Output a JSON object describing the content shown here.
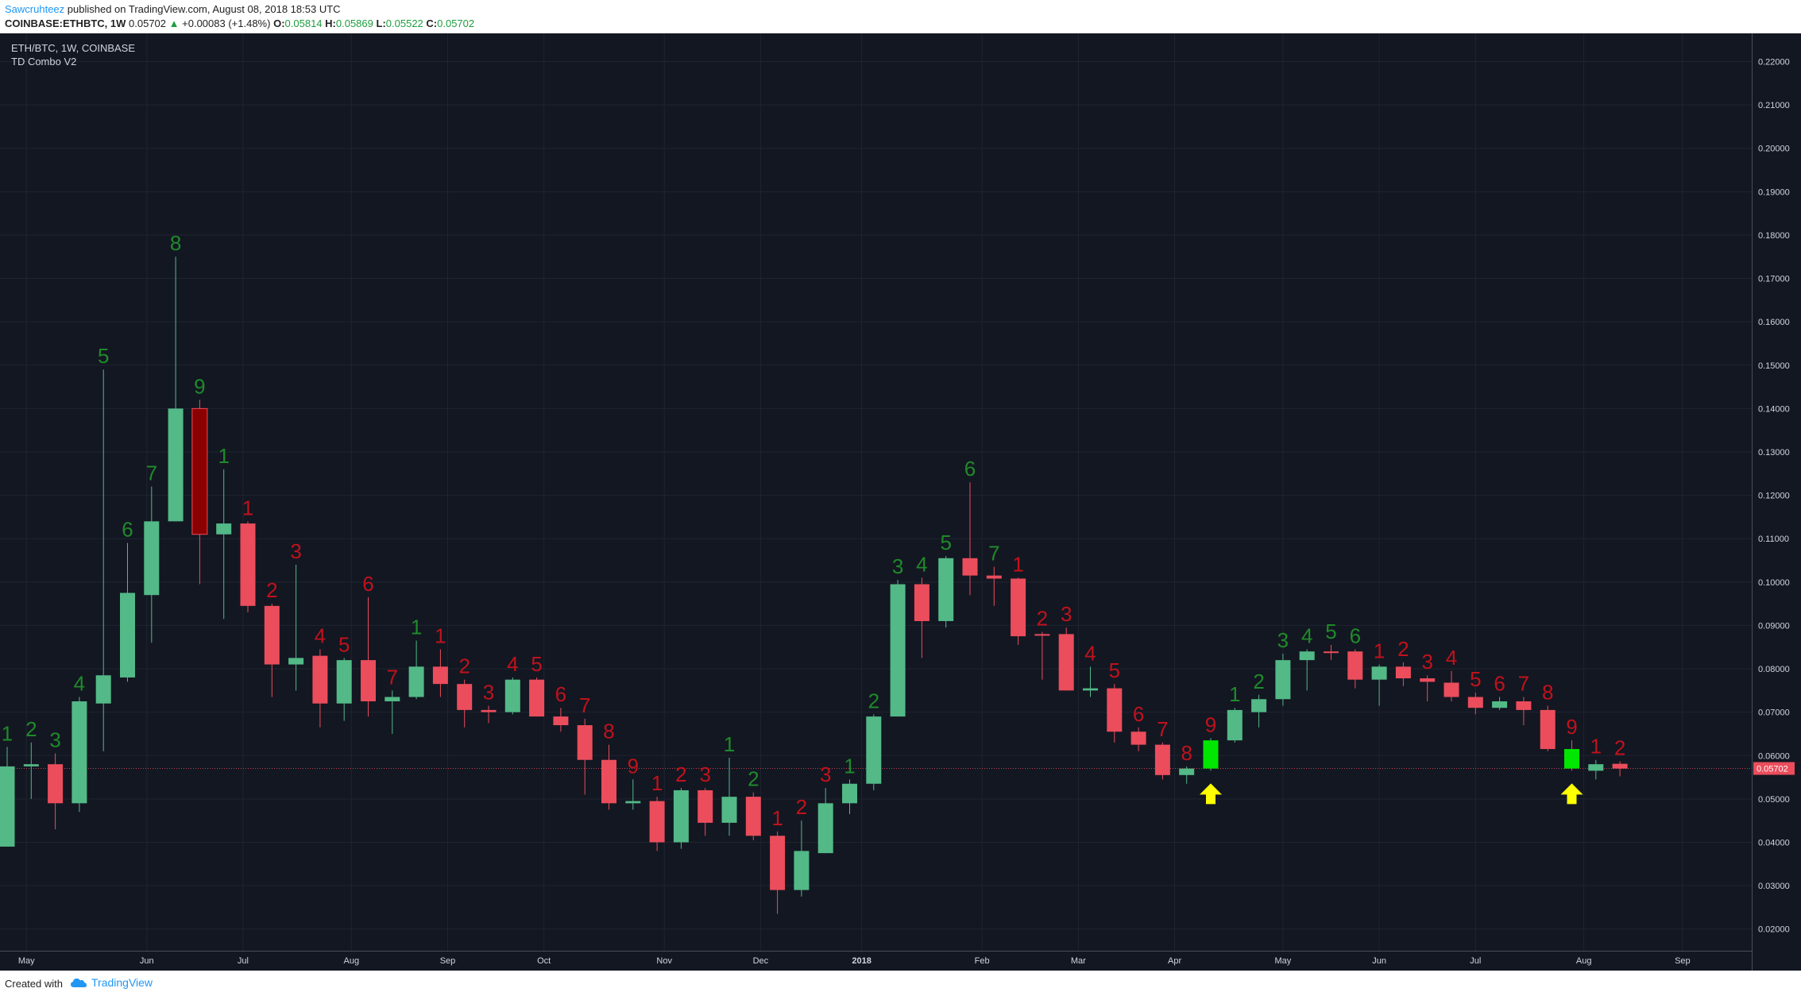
{
  "header": {
    "author": "Sawcruhteez",
    "published_text": "published on TradingView.com, August 08, 2018 18:53 UTC",
    "symbol": "COINBASE:ETHBTC, 1W",
    "last": "0.05702",
    "change": "+0.00083 (+1.48%)",
    "o_label": "O:",
    "o_val": "0.05814",
    "h_label": "H:",
    "h_val": "0.05869",
    "l_label": "L:",
    "l_val": "0.05522",
    "c_label": "C:",
    "c_val": "0.05702"
  },
  "legend": {
    "pair": "ETH/BTC, 1W, COINBASE",
    "indicator": "TD Combo V2"
  },
  "footer": {
    "created_with": "Created with",
    "brand": "TradingView"
  },
  "colors": {
    "background": "#131722",
    "up": "#53b987",
    "down": "#eb4d5c",
    "setup_up": "#1f8a2a",
    "setup_down": "#c0121c",
    "highlight_green": "#00e600",
    "highlight_red": "#8b0000",
    "arrow": "#ffff00",
    "price_tag": "#eb4d5c"
  },
  "chart_data": {
    "type": "candlestick",
    "symbol": "COINBASE:ETHBTC",
    "interval": "1W",
    "ylim": [
      0.015,
      0.2265
    ],
    "y_ticks": [
      "0.02000",
      "0.03000",
      "0.04000",
      "0.05000",
      "0.06000",
      "0.07000",
      "0.08000",
      "0.09000",
      "0.10000",
      "0.11000",
      "0.12000",
      "0.13000",
      "0.14000",
      "0.15000",
      "0.16000",
      "0.17000",
      "0.18000",
      "0.19000",
      "0.20000",
      "0.21000",
      "0.22000"
    ],
    "last_price": "0.05702",
    "x_labels": [
      {
        "label": "May",
        "at": 0.8
      },
      {
        "label": "Jun",
        "at": 5.8
      },
      {
        "label": "Jul",
        "at": 9.8
      },
      {
        "label": "Aug",
        "at": 14.3
      },
      {
        "label": "Sep",
        "at": 18.3
      },
      {
        "label": "Oct",
        "at": 22.3
      },
      {
        "label": "Nov",
        "at": 27.3
      },
      {
        "label": "Dec",
        "at": 31.3
      },
      {
        "label": "2018",
        "at": 35.5
      },
      {
        "label": "Feb",
        "at": 40.5
      },
      {
        "label": "Mar",
        "at": 44.5
      },
      {
        "label": "Apr",
        "at": 48.5
      },
      {
        "label": "May",
        "at": 53
      },
      {
        "label": "Jun",
        "at": 57
      },
      {
        "label": "Jul",
        "at": 61
      },
      {
        "label": "Aug",
        "at": 65.5
      },
      {
        "label": "Sep",
        "at": 69.6
      }
    ],
    "candles": [
      {
        "o": 0.039,
        "h": 0.062,
        "l": 0.039,
        "c": 0.0575,
        "td": "1",
        "tdc": "up"
      },
      {
        "o": 0.0575,
        "h": 0.063,
        "l": 0.05,
        "c": 0.058,
        "td": "2",
        "tdc": "up"
      },
      {
        "o": 0.058,
        "h": 0.0605,
        "l": 0.043,
        "c": 0.049,
        "td": "3",
        "tdc": "up"
      },
      {
        "o": 0.049,
        "h": 0.0735,
        "l": 0.047,
        "c": 0.0725,
        "td": "4",
        "tdc": "up"
      },
      {
        "o": 0.072,
        "h": 0.149,
        "l": 0.061,
        "c": 0.0785,
        "td": "5",
        "tdc": "up"
      },
      {
        "o": 0.078,
        "h": 0.109,
        "l": 0.077,
        "c": 0.0975,
        "td": "6",
        "tdc": "up"
      },
      {
        "o": 0.097,
        "h": 0.122,
        "l": 0.086,
        "c": 0.114,
        "td": "7",
        "tdc": "up"
      },
      {
        "o": 0.114,
        "h": 0.175,
        "l": 0.114,
        "c": 0.14,
        "td": "8",
        "tdc": "up"
      },
      {
        "o": 0.14,
        "h": 0.142,
        "l": 0.0995,
        "c": 0.111,
        "td": "9",
        "tdc": "up",
        "hl": "red"
      },
      {
        "o": 0.111,
        "h": 0.126,
        "l": 0.0915,
        "c": 0.1135,
        "td": "1",
        "tdc": "up"
      },
      {
        "o": 0.1135,
        "h": 0.114,
        "l": 0.093,
        "c": 0.0945,
        "td": "1",
        "tdc": "down"
      },
      {
        "o": 0.0945,
        "h": 0.095,
        "l": 0.0735,
        "c": 0.081,
        "td": "2",
        "tdc": "down"
      },
      {
        "o": 0.081,
        "h": 0.104,
        "l": 0.075,
        "c": 0.0825,
        "td": "3",
        "tdc": "down"
      },
      {
        "o": 0.083,
        "h": 0.0845,
        "l": 0.0665,
        "c": 0.072,
        "td": "4",
        "tdc": "down"
      },
      {
        "o": 0.072,
        "h": 0.0825,
        "l": 0.068,
        "c": 0.082,
        "td": "5",
        "tdc": "down"
      },
      {
        "o": 0.082,
        "h": 0.0965,
        "l": 0.069,
        "c": 0.0725,
        "td": "6",
        "tdc": "down"
      },
      {
        "o": 0.0725,
        "h": 0.075,
        "l": 0.065,
        "c": 0.0735,
        "td": "7",
        "tdc": "down"
      },
      {
        "o": 0.0735,
        "h": 0.0865,
        "l": 0.073,
        "c": 0.0805,
        "td": "1",
        "tdc": "up"
      },
      {
        "o": 0.0805,
        "h": 0.0845,
        "l": 0.0735,
        "c": 0.0765,
        "td": "1",
        "tdc": "down"
      },
      {
        "o": 0.0765,
        "h": 0.0775,
        "l": 0.0665,
        "c": 0.0705,
        "td": "2",
        "tdc": "down"
      },
      {
        "o": 0.0705,
        "h": 0.0715,
        "l": 0.0675,
        "c": 0.07,
        "td": "3",
        "tdc": "down"
      },
      {
        "o": 0.07,
        "h": 0.078,
        "l": 0.0695,
        "c": 0.0775,
        "td": "4",
        "tdc": "down"
      },
      {
        "o": 0.0775,
        "h": 0.078,
        "l": 0.069,
        "c": 0.069,
        "td": "5",
        "tdc": "down"
      },
      {
        "o": 0.069,
        "h": 0.071,
        "l": 0.0655,
        "c": 0.067,
        "td": "6",
        "tdc": "down"
      },
      {
        "o": 0.067,
        "h": 0.0685,
        "l": 0.051,
        "c": 0.059,
        "td": "7",
        "tdc": "down"
      },
      {
        "o": 0.059,
        "h": 0.0625,
        "l": 0.0475,
        "c": 0.049,
        "td": "8",
        "tdc": "down"
      },
      {
        "o": 0.049,
        "h": 0.0545,
        "l": 0.0475,
        "c": 0.0495,
        "td": "9",
        "tdc": "down"
      },
      {
        "o": 0.0495,
        "h": 0.0505,
        "l": 0.038,
        "c": 0.04,
        "td": "1",
        "tdc": "down"
      },
      {
        "o": 0.04,
        "h": 0.0525,
        "l": 0.0385,
        "c": 0.052,
        "td": "2",
        "tdc": "down"
      },
      {
        "o": 0.052,
        "h": 0.0525,
        "l": 0.0415,
        "c": 0.0445,
        "td": "3",
        "tdc": "down"
      },
      {
        "o": 0.0445,
        "h": 0.0595,
        "l": 0.0415,
        "c": 0.0505,
        "td": "1",
        "tdc": "up"
      },
      {
        "o": 0.0505,
        "h": 0.0515,
        "l": 0.0405,
        "c": 0.0415,
        "td": "2",
        "tdc": "up"
      },
      {
        "o": 0.0415,
        "h": 0.0425,
        "l": 0.0235,
        "c": 0.029,
        "td": "1",
        "tdc": "down"
      },
      {
        "o": 0.029,
        "h": 0.045,
        "l": 0.0275,
        "c": 0.038,
        "td": "2",
        "tdc": "down"
      },
      {
        "o": 0.0375,
        "h": 0.0525,
        "l": 0.0375,
        "c": 0.049,
        "td": "3",
        "tdc": "down"
      },
      {
        "o": 0.049,
        "h": 0.0545,
        "l": 0.0465,
        "c": 0.0535,
        "td": "1",
        "tdc": "up"
      },
      {
        "o": 0.0535,
        "h": 0.0695,
        "l": 0.052,
        "c": 0.069,
        "td": "2",
        "tdc": "up"
      },
      {
        "o": 0.069,
        "h": 0.1005,
        "l": 0.069,
        "c": 0.0995,
        "td": "3",
        "tdc": "up"
      },
      {
        "o": 0.0995,
        "h": 0.101,
        "l": 0.0825,
        "c": 0.091,
        "td": "4",
        "tdc": "up"
      },
      {
        "o": 0.091,
        "h": 0.106,
        "l": 0.0895,
        "c": 0.1055,
        "td": "5",
        "tdc": "up"
      },
      {
        "o": 0.1055,
        "h": 0.123,
        "l": 0.097,
        "c": 0.1015,
        "td": "6",
        "tdc": "up"
      },
      {
        "o": 0.1015,
        "h": 0.1035,
        "l": 0.0945,
        "c": 0.1008,
        "td": "7",
        "tdc": "up"
      },
      {
        "o": 0.1008,
        "h": 0.101,
        "l": 0.0855,
        "c": 0.0875,
        "td": "1",
        "tdc": "down"
      },
      {
        "o": 0.088,
        "h": 0.0885,
        "l": 0.0775,
        "c": 0.0878,
        "td": "2",
        "tdc": "down"
      },
      {
        "o": 0.088,
        "h": 0.0895,
        "l": 0.075,
        "c": 0.075,
        "td": "3",
        "tdc": "down"
      },
      {
        "o": 0.075,
        "h": 0.0805,
        "l": 0.0735,
        "c": 0.0755,
        "td": "4",
        "tdc": "down"
      },
      {
        "o": 0.0755,
        "h": 0.0765,
        "l": 0.063,
        "c": 0.0655,
        "td": "5",
        "tdc": "down"
      },
      {
        "o": 0.0655,
        "h": 0.0665,
        "l": 0.061,
        "c": 0.0625,
        "td": "6",
        "tdc": "down"
      },
      {
        "o": 0.0625,
        "h": 0.063,
        "l": 0.0545,
        "c": 0.0555,
        "td": "7",
        "tdc": "down"
      },
      {
        "o": 0.0555,
        "h": 0.0575,
        "l": 0.0535,
        "c": 0.057,
        "td": "8",
        "tdc": "down"
      },
      {
        "o": 0.057,
        "h": 0.064,
        "l": 0.0565,
        "c": 0.0635,
        "td": "9",
        "tdc": "down",
        "hl": "green"
      },
      {
        "o": 0.0635,
        "h": 0.071,
        "l": 0.063,
        "c": 0.0705,
        "td": "1",
        "tdc": "up"
      },
      {
        "o": 0.07,
        "h": 0.074,
        "l": 0.0665,
        "c": 0.073,
        "td": "2",
        "tdc": "up"
      },
      {
        "o": 0.073,
        "h": 0.0835,
        "l": 0.0715,
        "c": 0.082,
        "td": "3",
        "tdc": "up"
      },
      {
        "o": 0.082,
        "h": 0.0845,
        "l": 0.075,
        "c": 0.084,
        "td": "4",
        "tdc": "up"
      },
      {
        "o": 0.084,
        "h": 0.0855,
        "l": 0.082,
        "c": 0.0838,
        "td": "5",
        "tdc": "up"
      },
      {
        "o": 0.084,
        "h": 0.0845,
        "l": 0.0755,
        "c": 0.0775,
        "td": "6",
        "tdc": "up"
      },
      {
        "o": 0.0775,
        "h": 0.081,
        "l": 0.0715,
        "c": 0.0805,
        "td": "1",
        "tdc": "down"
      },
      {
        "o": 0.0805,
        "h": 0.0815,
        "l": 0.076,
        "c": 0.0778,
        "td": "2",
        "tdc": "down"
      },
      {
        "o": 0.0778,
        "h": 0.0785,
        "l": 0.0725,
        "c": 0.077,
        "td": "3",
        "tdc": "down"
      },
      {
        "o": 0.0768,
        "h": 0.0795,
        "l": 0.0725,
        "c": 0.0735,
        "td": "4",
        "tdc": "down"
      },
      {
        "o": 0.0735,
        "h": 0.0745,
        "l": 0.0695,
        "c": 0.071,
        "td": "5",
        "tdc": "down"
      },
      {
        "o": 0.071,
        "h": 0.0735,
        "l": 0.0705,
        "c": 0.0725,
        "td": "6",
        "tdc": "down"
      },
      {
        "o": 0.0725,
        "h": 0.0735,
        "l": 0.067,
        "c": 0.0705,
        "td": "7",
        "tdc": "down"
      },
      {
        "o": 0.0705,
        "h": 0.0715,
        "l": 0.061,
        "c": 0.0615,
        "td": "8",
        "tdc": "down"
      },
      {
        "o": 0.0615,
        "h": 0.0635,
        "l": 0.0565,
        "c": 0.057,
        "td": "9",
        "tdc": "down",
        "hl": "green"
      },
      {
        "o": 0.0565,
        "h": 0.059,
        "l": 0.0545,
        "c": 0.058,
        "td": "1",
        "tdc": "down"
      },
      {
        "o": 0.0581,
        "h": 0.0587,
        "l": 0.0552,
        "c": 0.057,
        "td": "2",
        "tdc": "down"
      }
    ],
    "arrows": [
      50,
      65
    ]
  }
}
